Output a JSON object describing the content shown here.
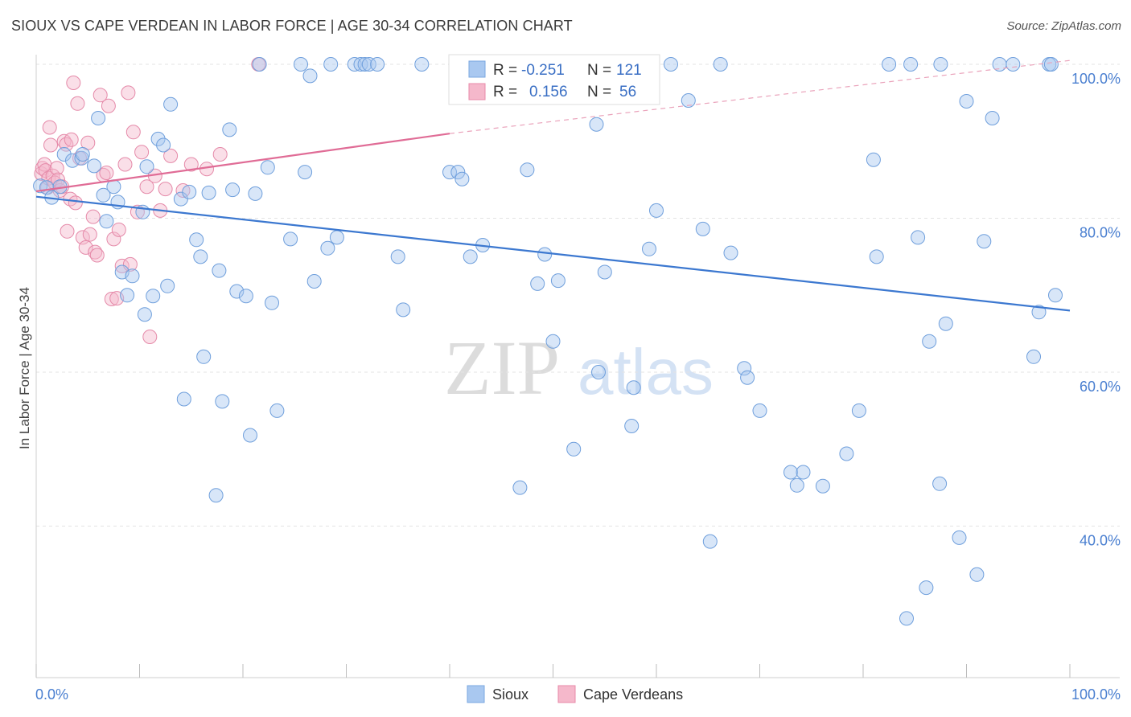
{
  "header": {
    "title": "SIOUX VS CAPE VERDEAN IN LABOR FORCE | AGE 30-34 CORRELATION CHART",
    "source": "Source: ZipAtlas.com"
  },
  "watermark": {
    "zip": "ZIP",
    "atlas": "atlas"
  },
  "stats_box": {
    "rows": [
      {
        "r_label": "R =",
        "r_value": "-0.251",
        "n_label": "N =",
        "n_value": "121",
        "color": "#a9c8f0"
      },
      {
        "r_label": "R =",
        "r_value": "0.156",
        "n_label": "N =",
        "n_value": "56",
        "color": "#f5b8cb"
      }
    ]
  },
  "legend": {
    "items": [
      {
        "label": "Sioux",
        "color": "#a9c8f0"
      },
      {
        "label": "Cape Verdeans",
        "color": "#f5b8cb"
      }
    ]
  },
  "chart_data": {
    "type": "scatter",
    "title": "SIOUX VS CAPE VERDEAN IN LABOR FORCE | AGE 30-34 CORRELATION CHART",
    "xlabel": "",
    "ylabel": "In Labor Force | Age 30-34",
    "xlim": [
      0,
      100
    ],
    "ylim": [
      20,
      102
    ],
    "x_tick_labels": [
      "0.0%",
      "100.0%"
    ],
    "y_ticks": [
      40,
      60,
      80,
      100
    ],
    "y_tick_labels": [
      "40.0%",
      "60.0%",
      "80.0%",
      "100.0%"
    ],
    "grid": true,
    "legend_position": "bottom-center",
    "series": [
      {
        "name": "Sioux",
        "color": "#4a86d8",
        "trend": {
          "x": [
            0,
            100
          ],
          "y": [
            82.8,
            68.0
          ]
        },
        "points": [
          [
            0.4,
            84.2
          ],
          [
            1.0,
            84.0
          ],
          [
            1.5,
            82.7
          ],
          [
            2.3,
            84.1
          ],
          [
            2.7,
            88.3
          ],
          [
            3.5,
            87.5
          ],
          [
            4.4,
            87.8
          ],
          [
            4.5,
            88.3
          ],
          [
            5.6,
            86.8
          ],
          [
            6.0,
            93.0
          ],
          [
            6.5,
            83.0
          ],
          [
            6.8,
            79.6
          ],
          [
            7.5,
            84.1
          ],
          [
            7.9,
            82.1
          ],
          [
            8.3,
            73.0
          ],
          [
            8.8,
            70.0
          ],
          [
            9.3,
            72.5
          ],
          [
            10.3,
            80.8
          ],
          [
            10.5,
            67.5
          ],
          [
            10.7,
            86.7
          ],
          [
            11.3,
            69.9
          ],
          [
            11.8,
            90.3
          ],
          [
            12.3,
            89.5
          ],
          [
            12.7,
            71.2
          ],
          [
            13.0,
            94.8
          ],
          [
            14.0,
            82.5
          ],
          [
            14.3,
            56.5
          ],
          [
            14.8,
            83.4
          ],
          [
            15.5,
            77.2
          ],
          [
            15.9,
            75.0
          ],
          [
            16.2,
            62.0
          ],
          [
            16.7,
            83.3
          ],
          [
            17.4,
            44.0
          ],
          [
            17.7,
            73.2
          ],
          [
            18.0,
            56.2
          ],
          [
            18.7,
            91.5
          ],
          [
            19.0,
            83.7
          ],
          [
            19.4,
            70.5
          ],
          [
            20.3,
            69.9
          ],
          [
            20.7,
            51.8
          ],
          [
            21.2,
            83.2
          ],
          [
            21.6,
            100.0
          ],
          [
            22.4,
            86.6
          ],
          [
            22.8,
            69.0
          ],
          [
            23.3,
            55.0
          ],
          [
            24.6,
            77.3
          ],
          [
            25.6,
            100.0
          ],
          [
            26.0,
            86.0
          ],
          [
            26.5,
            98.5
          ],
          [
            26.9,
            71.8
          ],
          [
            28.2,
            76.1
          ],
          [
            28.5,
            100.0
          ],
          [
            29.1,
            77.5
          ],
          [
            30.8,
            100.0
          ],
          [
            31.4,
            100.0
          ],
          [
            31.8,
            100.0
          ],
          [
            32.2,
            100.0
          ],
          [
            33.0,
            100.0
          ],
          [
            35.0,
            75.0
          ],
          [
            35.5,
            68.1
          ],
          [
            37.3,
            100.0
          ],
          [
            40.0,
            86.0
          ],
          [
            40.8,
            86.0
          ],
          [
            41.2,
            85.1
          ],
          [
            42.0,
            75.0
          ],
          [
            43.2,
            76.5
          ],
          [
            46.8,
            45.0
          ],
          [
            47.5,
            86.3
          ],
          [
            48.0,
            100.0
          ],
          [
            48.5,
            71.5
          ],
          [
            49.2,
            75.3
          ],
          [
            50.0,
            64.0
          ],
          [
            50.5,
            71.9
          ],
          [
            52.0,
            50.0
          ],
          [
            53.0,
            100.0
          ],
          [
            54.2,
            92.2
          ],
          [
            54.4,
            60.0
          ],
          [
            55.0,
            73.0
          ],
          [
            55.7,
            100.0
          ],
          [
            57.8,
            58.0
          ],
          [
            57.6,
            53.0
          ],
          [
            59.3,
            76.0
          ],
          [
            60.0,
            81.0
          ],
          [
            61.4,
            100.0
          ],
          [
            63.1,
            95.3
          ],
          [
            64.5,
            78.6
          ],
          [
            65.2,
            38.0
          ],
          [
            66.2,
            100.0
          ],
          [
            67.2,
            75.5
          ],
          [
            68.5,
            60.5
          ],
          [
            68.8,
            59.3
          ],
          [
            70.0,
            55.0
          ],
          [
            73.0,
            47.0
          ],
          [
            73.6,
            45.3
          ],
          [
            74.2,
            47.0
          ],
          [
            76.1,
            45.2
          ],
          [
            78.4,
            49.4
          ],
          [
            79.6,
            55.0
          ],
          [
            81.0,
            87.6
          ],
          [
            81.3,
            75.0
          ],
          [
            82.5,
            100.0
          ],
          [
            84.2,
            28.0
          ],
          [
            84.6,
            100.0
          ],
          [
            85.3,
            77.5
          ],
          [
            86.1,
            32.0
          ],
          [
            86.4,
            64.0
          ],
          [
            87.4,
            45.5
          ],
          [
            87.5,
            100.0
          ],
          [
            88.0,
            66.3
          ],
          [
            89.3,
            38.5
          ],
          [
            90.0,
            95.2
          ],
          [
            91.0,
            33.7
          ],
          [
            91.7,
            77.0
          ],
          [
            92.5,
            93.0
          ],
          [
            93.2,
            100.0
          ],
          [
            94.5,
            100.0
          ],
          [
            96.5,
            62.0
          ],
          [
            97.0,
            67.8
          ],
          [
            98.0,
            100.0
          ],
          [
            98.2,
            100.0
          ],
          [
            98.6,
            70.0
          ]
        ]
      },
      {
        "name": "Cape Verdeans",
        "color": "#e06c96",
        "trend": {
          "x": [
            0,
            40,
            100
          ],
          "y": [
            83.5,
            91.0,
            100.5
          ]
        },
        "points": [
          [
            0.5,
            85.8
          ],
          [
            0.6,
            86.5
          ],
          [
            0.8,
            87.0
          ],
          [
            0.9,
            86.2
          ],
          [
            1.1,
            84.0
          ],
          [
            1.2,
            85.2
          ],
          [
            1.3,
            91.8
          ],
          [
            1.4,
            89.5
          ],
          [
            1.6,
            85.5
          ],
          [
            1.8,
            84.6
          ],
          [
            2.0,
            86.5
          ],
          [
            2.1,
            85.0
          ],
          [
            2.3,
            83.6
          ],
          [
            2.5,
            84.1
          ],
          [
            2.7,
            90.0
          ],
          [
            2.9,
            89.6
          ],
          [
            3.0,
            78.3
          ],
          [
            3.3,
            82.5
          ],
          [
            3.4,
            90.2
          ],
          [
            3.6,
            97.6
          ],
          [
            3.8,
            82.0
          ],
          [
            4.0,
            94.9
          ],
          [
            4.2,
            87.8
          ],
          [
            4.5,
            77.5
          ],
          [
            4.8,
            76.2
          ],
          [
            5.0,
            89.8
          ],
          [
            5.2,
            77.9
          ],
          [
            5.5,
            80.2
          ],
          [
            5.7,
            75.6
          ],
          [
            5.9,
            75.2
          ],
          [
            6.2,
            96.0
          ],
          [
            6.5,
            85.6
          ],
          [
            6.8,
            85.9
          ],
          [
            7.0,
            94.6
          ],
          [
            7.3,
            69.5
          ],
          [
            7.5,
            77.3
          ],
          [
            7.8,
            69.6
          ],
          [
            8.0,
            78.5
          ],
          [
            8.3,
            73.8
          ],
          [
            8.6,
            87.0
          ],
          [
            8.9,
            96.3
          ],
          [
            9.1,
            74.0
          ],
          [
            9.4,
            91.2
          ],
          [
            9.8,
            80.8
          ],
          [
            10.2,
            88.6
          ],
          [
            10.7,
            84.1
          ],
          [
            11.0,
            64.6
          ],
          [
            11.5,
            85.5
          ],
          [
            12.0,
            81.0
          ],
          [
            12.5,
            83.8
          ],
          [
            13.0,
            88.1
          ],
          [
            14.2,
            83.6
          ],
          [
            15.0,
            87.0
          ],
          [
            16.5,
            86.4
          ],
          [
            17.8,
            88.3
          ],
          [
            21.5,
            100.0
          ]
        ]
      }
    ]
  }
}
